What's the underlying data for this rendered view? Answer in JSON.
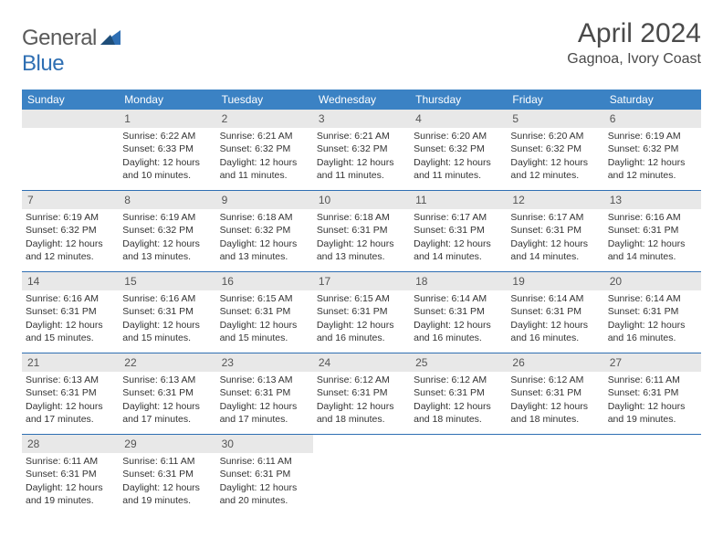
{
  "brand": {
    "general": "General",
    "blue": "Blue"
  },
  "title": "April 2024",
  "location": "Gagnoa, Ivory Coast",
  "weekday_header_bg": "#3b82c4",
  "weekday_header_fg": "#ffffff",
  "day_number_bg": "#e8e8e8",
  "row_border_color": "#2f6fb3",
  "weekdays": [
    "Sunday",
    "Monday",
    "Tuesday",
    "Wednesday",
    "Thursday",
    "Friday",
    "Saturday"
  ],
  "weeks": [
    [
      {
        "n": "",
        "sr": "",
        "ss": "",
        "dl": ""
      },
      {
        "n": "1",
        "sr": "Sunrise: 6:22 AM",
        "ss": "Sunset: 6:33 PM",
        "dl": "Daylight: 12 hours and 10 minutes."
      },
      {
        "n": "2",
        "sr": "Sunrise: 6:21 AM",
        "ss": "Sunset: 6:32 PM",
        "dl": "Daylight: 12 hours and 11 minutes."
      },
      {
        "n": "3",
        "sr": "Sunrise: 6:21 AM",
        "ss": "Sunset: 6:32 PM",
        "dl": "Daylight: 12 hours and 11 minutes."
      },
      {
        "n": "4",
        "sr": "Sunrise: 6:20 AM",
        "ss": "Sunset: 6:32 PM",
        "dl": "Daylight: 12 hours and 11 minutes."
      },
      {
        "n": "5",
        "sr": "Sunrise: 6:20 AM",
        "ss": "Sunset: 6:32 PM",
        "dl": "Daylight: 12 hours and 12 minutes."
      },
      {
        "n": "6",
        "sr": "Sunrise: 6:19 AM",
        "ss": "Sunset: 6:32 PM",
        "dl": "Daylight: 12 hours and 12 minutes."
      }
    ],
    [
      {
        "n": "7",
        "sr": "Sunrise: 6:19 AM",
        "ss": "Sunset: 6:32 PM",
        "dl": "Daylight: 12 hours and 12 minutes."
      },
      {
        "n": "8",
        "sr": "Sunrise: 6:19 AM",
        "ss": "Sunset: 6:32 PM",
        "dl": "Daylight: 12 hours and 13 minutes."
      },
      {
        "n": "9",
        "sr": "Sunrise: 6:18 AM",
        "ss": "Sunset: 6:32 PM",
        "dl": "Daylight: 12 hours and 13 minutes."
      },
      {
        "n": "10",
        "sr": "Sunrise: 6:18 AM",
        "ss": "Sunset: 6:31 PM",
        "dl": "Daylight: 12 hours and 13 minutes."
      },
      {
        "n": "11",
        "sr": "Sunrise: 6:17 AM",
        "ss": "Sunset: 6:31 PM",
        "dl": "Daylight: 12 hours and 14 minutes."
      },
      {
        "n": "12",
        "sr": "Sunrise: 6:17 AM",
        "ss": "Sunset: 6:31 PM",
        "dl": "Daylight: 12 hours and 14 minutes."
      },
      {
        "n": "13",
        "sr": "Sunrise: 6:16 AM",
        "ss": "Sunset: 6:31 PM",
        "dl": "Daylight: 12 hours and 14 minutes."
      }
    ],
    [
      {
        "n": "14",
        "sr": "Sunrise: 6:16 AM",
        "ss": "Sunset: 6:31 PM",
        "dl": "Daylight: 12 hours and 15 minutes."
      },
      {
        "n": "15",
        "sr": "Sunrise: 6:16 AM",
        "ss": "Sunset: 6:31 PM",
        "dl": "Daylight: 12 hours and 15 minutes."
      },
      {
        "n": "16",
        "sr": "Sunrise: 6:15 AM",
        "ss": "Sunset: 6:31 PM",
        "dl": "Daylight: 12 hours and 15 minutes."
      },
      {
        "n": "17",
        "sr": "Sunrise: 6:15 AM",
        "ss": "Sunset: 6:31 PM",
        "dl": "Daylight: 12 hours and 16 minutes."
      },
      {
        "n": "18",
        "sr": "Sunrise: 6:14 AM",
        "ss": "Sunset: 6:31 PM",
        "dl": "Daylight: 12 hours and 16 minutes."
      },
      {
        "n": "19",
        "sr": "Sunrise: 6:14 AM",
        "ss": "Sunset: 6:31 PM",
        "dl": "Daylight: 12 hours and 16 minutes."
      },
      {
        "n": "20",
        "sr": "Sunrise: 6:14 AM",
        "ss": "Sunset: 6:31 PM",
        "dl": "Daylight: 12 hours and 16 minutes."
      }
    ],
    [
      {
        "n": "21",
        "sr": "Sunrise: 6:13 AM",
        "ss": "Sunset: 6:31 PM",
        "dl": "Daylight: 12 hours and 17 minutes."
      },
      {
        "n": "22",
        "sr": "Sunrise: 6:13 AM",
        "ss": "Sunset: 6:31 PM",
        "dl": "Daylight: 12 hours and 17 minutes."
      },
      {
        "n": "23",
        "sr": "Sunrise: 6:13 AM",
        "ss": "Sunset: 6:31 PM",
        "dl": "Daylight: 12 hours and 17 minutes."
      },
      {
        "n": "24",
        "sr": "Sunrise: 6:12 AM",
        "ss": "Sunset: 6:31 PM",
        "dl": "Daylight: 12 hours and 18 minutes."
      },
      {
        "n": "25",
        "sr": "Sunrise: 6:12 AM",
        "ss": "Sunset: 6:31 PM",
        "dl": "Daylight: 12 hours and 18 minutes."
      },
      {
        "n": "26",
        "sr": "Sunrise: 6:12 AM",
        "ss": "Sunset: 6:31 PM",
        "dl": "Daylight: 12 hours and 18 minutes."
      },
      {
        "n": "27",
        "sr": "Sunrise: 6:11 AM",
        "ss": "Sunset: 6:31 PM",
        "dl": "Daylight: 12 hours and 19 minutes."
      }
    ],
    [
      {
        "n": "28",
        "sr": "Sunrise: 6:11 AM",
        "ss": "Sunset: 6:31 PM",
        "dl": "Daylight: 12 hours and 19 minutes."
      },
      {
        "n": "29",
        "sr": "Sunrise: 6:11 AM",
        "ss": "Sunset: 6:31 PM",
        "dl": "Daylight: 12 hours and 19 minutes."
      },
      {
        "n": "30",
        "sr": "Sunrise: 6:11 AM",
        "ss": "Sunset: 6:31 PM",
        "dl": "Daylight: 12 hours and 20 minutes."
      },
      {
        "n": "",
        "sr": "",
        "ss": "",
        "dl": ""
      },
      {
        "n": "",
        "sr": "",
        "ss": "",
        "dl": ""
      },
      {
        "n": "",
        "sr": "",
        "ss": "",
        "dl": ""
      },
      {
        "n": "",
        "sr": "",
        "ss": "",
        "dl": ""
      }
    ]
  ]
}
